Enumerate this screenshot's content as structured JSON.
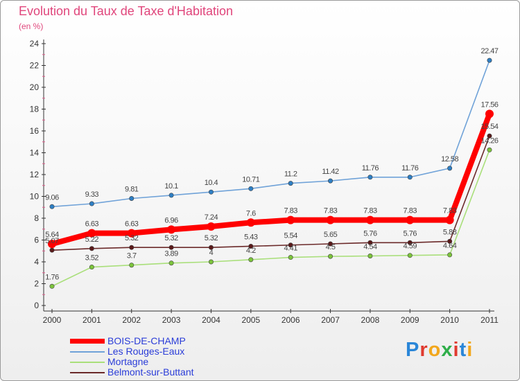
{
  "header": {
    "title": "Evolution du Taux de Taxe d'Habitation",
    "subtitle": "(en %)"
  },
  "logo": {
    "text": "Proxiti",
    "letters": [
      {
        "ch": "P",
        "color": "#2a86d8"
      },
      {
        "ch": "r",
        "color": "#e03a2f"
      },
      {
        "ch": "o",
        "color": "#f2a71c"
      },
      {
        "ch": "x",
        "color": "#2fae4a"
      },
      {
        "ch": "i",
        "color": "#e03a2f"
      },
      {
        "ch": "t",
        "color": "#2a86d8"
      },
      {
        "ch": "i",
        "color": "#f2a71c"
      }
    ]
  },
  "chart_data": {
    "type": "line",
    "title": "Evolution du Taux de Taxe d'Habitation",
    "ylabel": "(en %)",
    "xlabel": "",
    "ylim": [
      0,
      24
    ],
    "yticks": [
      "0",
      "2",
      "4",
      "6",
      "8",
      "10",
      "12",
      "14",
      "16",
      "18",
      "20",
      "22",
      "24"
    ],
    "categories": [
      "2000",
      "2001",
      "2002",
      "2003",
      "2004",
      "2005",
      "2006",
      "2007",
      "2008",
      "2009",
      "2010",
      "2011"
    ],
    "grid": false,
    "legend_position": "bottom-left",
    "series": [
      {
        "name": "BOIS-DE-CHAMP",
        "color": "#ff0000",
        "marker": "#ff0000",
        "width": "thick",
        "values": [
          5.64,
          6.63,
          6.63,
          6.96,
          7.24,
          7.6,
          7.83,
          7.83,
          7.83,
          7.83,
          7.83,
          17.56
        ],
        "labels": [
          "5.64",
          "6.63",
          "6.63",
          "6.96",
          "7.24",
          "7.6",
          "7.83",
          "7.83",
          "7.83",
          "7.83",
          "7.83",
          "17.56"
        ]
      },
      {
        "name": "Les Rouges-Eaux",
        "color": "#6fa2d8",
        "marker": "#2e7fc4",
        "width": "thin",
        "values": [
          9.06,
          9.33,
          9.81,
          10.1,
          10.4,
          10.71,
          11.2,
          11.42,
          11.76,
          11.76,
          12.58,
          22.47
        ],
        "labels": [
          "9.06",
          "9.33",
          "9.81",
          "10.1",
          "10.4",
          "10.71",
          "11.2",
          "11.42",
          "11.76",
          "11.76",
          "12.58",
          "22.47"
        ]
      },
      {
        "name": "Mortagne",
        "color": "#a9df7a",
        "marker": "#7cc43c",
        "width": "thin",
        "values": [
          1.76,
          3.52,
          3.7,
          3.89,
          4,
          4.2,
          4.41,
          4.5,
          4.54,
          4.59,
          4.64,
          14.26
        ],
        "labels": [
          "1.76",
          "3.52",
          "3.7",
          "3.89",
          "4",
          "4.2",
          "4.41",
          "4.5",
          "4.54",
          "4.59",
          "4.64",
          "14.26"
        ]
      },
      {
        "name": "Belmont-sur-Buttant",
        "color": "#6b2a2a",
        "marker": "#5a1a1a",
        "width": "thin",
        "values": [
          5.07,
          5.22,
          5.32,
          5.32,
          5.32,
          5.43,
          5.54,
          5.65,
          5.76,
          5.76,
          5.88,
          15.54
        ],
        "labels": [
          "5.07",
          "5.22",
          "5.32",
          "5.32",
          "5.32",
          "5.43",
          "5.54",
          "5.65",
          "5.76",
          "5.76",
          "5.88",
          "15.54"
        ]
      }
    ]
  }
}
